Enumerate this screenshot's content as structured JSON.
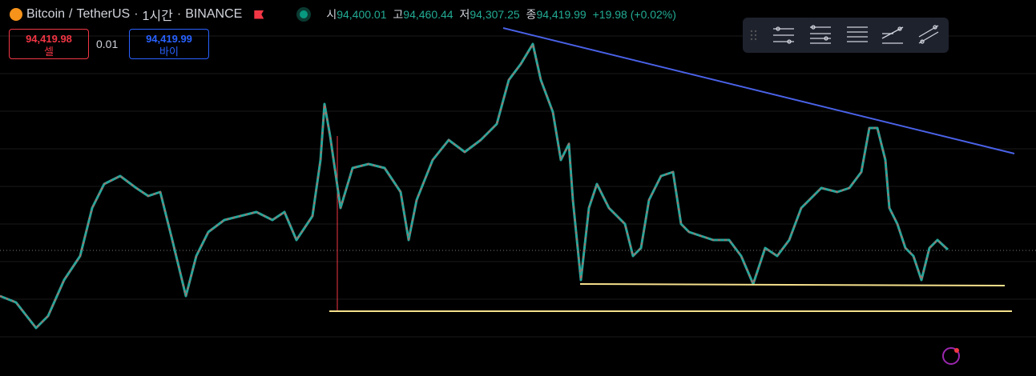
{
  "header": {
    "symbol": "Bitcoin",
    "separator": "/",
    "quote": "TetherUS",
    "dot1": "·",
    "interval": "1시간",
    "dot2": "·",
    "exchange": "BINANCE"
  },
  "ohlc": {
    "open_label": "시",
    "open": "94,400.01",
    "high_label": "고",
    "high": "94,460.44",
    "low_label": "저",
    "low": "94,307.25",
    "close_label": "종",
    "close": "94,419.99",
    "change": "+19.98 (+0.02%)"
  },
  "order_panel": {
    "sell_price": "94,419.98",
    "sell_label": "셀",
    "quantity": "0.01",
    "buy_price": "94,419.99",
    "buy_label": "바이"
  }
}
